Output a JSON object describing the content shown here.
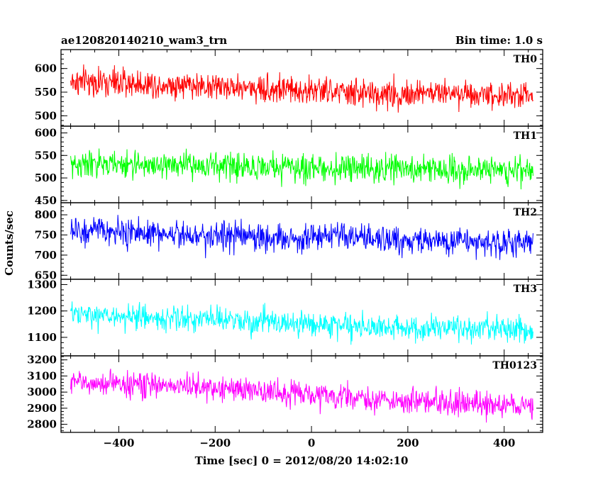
{
  "header": {
    "title": "ae120820140210_wam3_trn",
    "bin_time": "Bin time: 1.0 s"
  },
  "axes": {
    "xlabel": "Time [sec] 0 = 2012/08/20 14:02:10",
    "ylabel": "Counts/sec",
    "xlim": [
      -520,
      480
    ],
    "xticks": [
      -400,
      -200,
      0,
      200,
      400
    ],
    "x_data_range": [
      -500,
      460
    ]
  },
  "chart_data": [
    {
      "type": "line",
      "name": "TH0",
      "color": "#ff0000",
      "ylim": [
        478,
        640
      ],
      "yticks": [
        500,
        550,
        600
      ],
      "trend": [
        [
          -500,
          572
        ],
        [
          -250,
          565
        ],
        [
          0,
          553
        ],
        [
          150,
          545
        ],
        [
          300,
          550
        ],
        [
          460,
          540
        ]
      ],
      "noise": 24
    },
    {
      "type": "line",
      "name": "TH1",
      "color": "#00ff00",
      "ylim": [
        445,
        615
      ],
      "yticks": [
        450,
        500,
        550,
        600
      ],
      "trend": [
        [
          -500,
          530
        ],
        [
          -250,
          528
        ],
        [
          0,
          522
        ],
        [
          200,
          520
        ],
        [
          460,
          518
        ]
      ],
      "noise": 24
    },
    {
      "type": "line",
      "name": "TH2",
      "color": "#0000ff",
      "ylim": [
        640,
        830
      ],
      "yticks": [
        650,
        700,
        750,
        800
      ],
      "trend": [
        [
          -500,
          760
        ],
        [
          -250,
          752
        ],
        [
          -20,
          740
        ],
        [
          0,
          748
        ],
        [
          150,
          738
        ],
        [
          460,
          728
        ]
      ],
      "noise": 28
    },
    {
      "type": "line",
      "name": "TH3",
      "color": "#00ffff",
      "ylim": [
        1030,
        1320
      ],
      "yticks": [
        1100,
        1200,
        1300
      ],
      "trend": [
        [
          -500,
          1185
        ],
        [
          -250,
          1170
        ],
        [
          0,
          1150
        ],
        [
          200,
          1135
        ],
        [
          460,
          1130
        ]
      ],
      "noise": 38
    },
    {
      "type": "line",
      "name": "TH0123",
      "color": "#ff00ff",
      "ylim": [
        2750,
        3225
      ],
      "yticks": [
        2800,
        2900,
        3000,
        3100,
        3200
      ],
      "trend": [
        [
          -500,
          3060
        ],
        [
          -250,
          3035
        ],
        [
          0,
          2985
        ],
        [
          200,
          2940
        ],
        [
          460,
          2915
        ]
      ],
      "noise": 62
    }
  ]
}
